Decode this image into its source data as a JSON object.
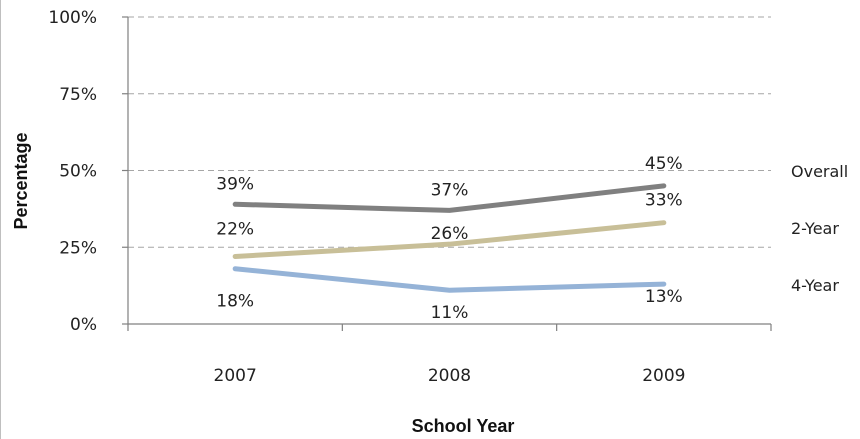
{
  "chart_data": {
    "type": "line",
    "title": "",
    "xlabel": "School Year",
    "ylabel": "Percentage",
    "categories": [
      "2007",
      "2008",
      "2009"
    ],
    "ylim": [
      0,
      100
    ],
    "yticks": [
      0,
      25,
      50,
      75,
      100
    ],
    "ytick_labels": [
      "0%",
      "25%",
      "50%",
      "75%",
      "100%"
    ],
    "grid": true,
    "legend_placement": "right",
    "series": [
      {
        "name": "Overall",
        "values": [
          39,
          37,
          45
        ],
        "labels": [
          "39%",
          "37%",
          "45%"
        ],
        "color": "#808080"
      },
      {
        "name": "2-Year",
        "values": [
          22,
          26,
          33
        ],
        "labels": [
          "22%",
          "26%",
          "33%"
        ],
        "color": "#c8bf98"
      },
      {
        "name": "4-Year",
        "values": [
          18,
          11,
          13
        ],
        "labels": [
          "18%",
          "11%",
          "13%"
        ],
        "color": "#95b3d7"
      }
    ]
  }
}
